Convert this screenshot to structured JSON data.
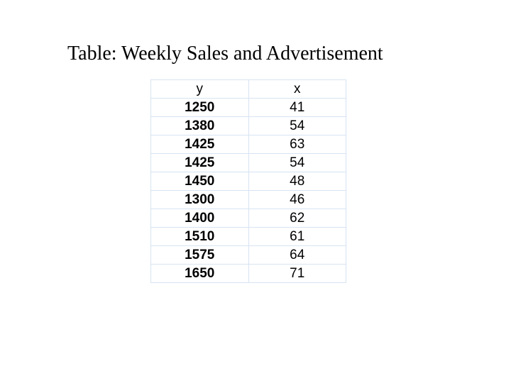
{
  "title": "Table: Weekly Sales and Advertisement",
  "table": {
    "type": "table",
    "columns": [
      "y",
      "x"
    ],
    "rows": [
      [
        "1250",
        "41"
      ],
      [
        "1380",
        "54"
      ],
      [
        "1425",
        "63"
      ],
      [
        "1425",
        "54"
      ],
      [
        "1450",
        "48"
      ],
      [
        "1300",
        "46"
      ],
      [
        "1400",
        "62"
      ],
      [
        "1510",
        "61"
      ],
      [
        "1575",
        "64"
      ],
      [
        "1650",
        "71"
      ]
    ],
    "border_color": "#d7e4f2",
    "background_color": "#ffffff",
    "text_color": "#000000",
    "col_y_weight": "bold",
    "col_x_weight": "normal",
    "header_weight": "normal",
    "cell_fontsize": 19,
    "col_widths": [
      "50%",
      "50%"
    ],
    "alignment": [
      "center",
      "center"
    ]
  },
  "title_style": {
    "fontsize": 28,
    "font_family": "Times New Roman",
    "color": "#000000"
  }
}
